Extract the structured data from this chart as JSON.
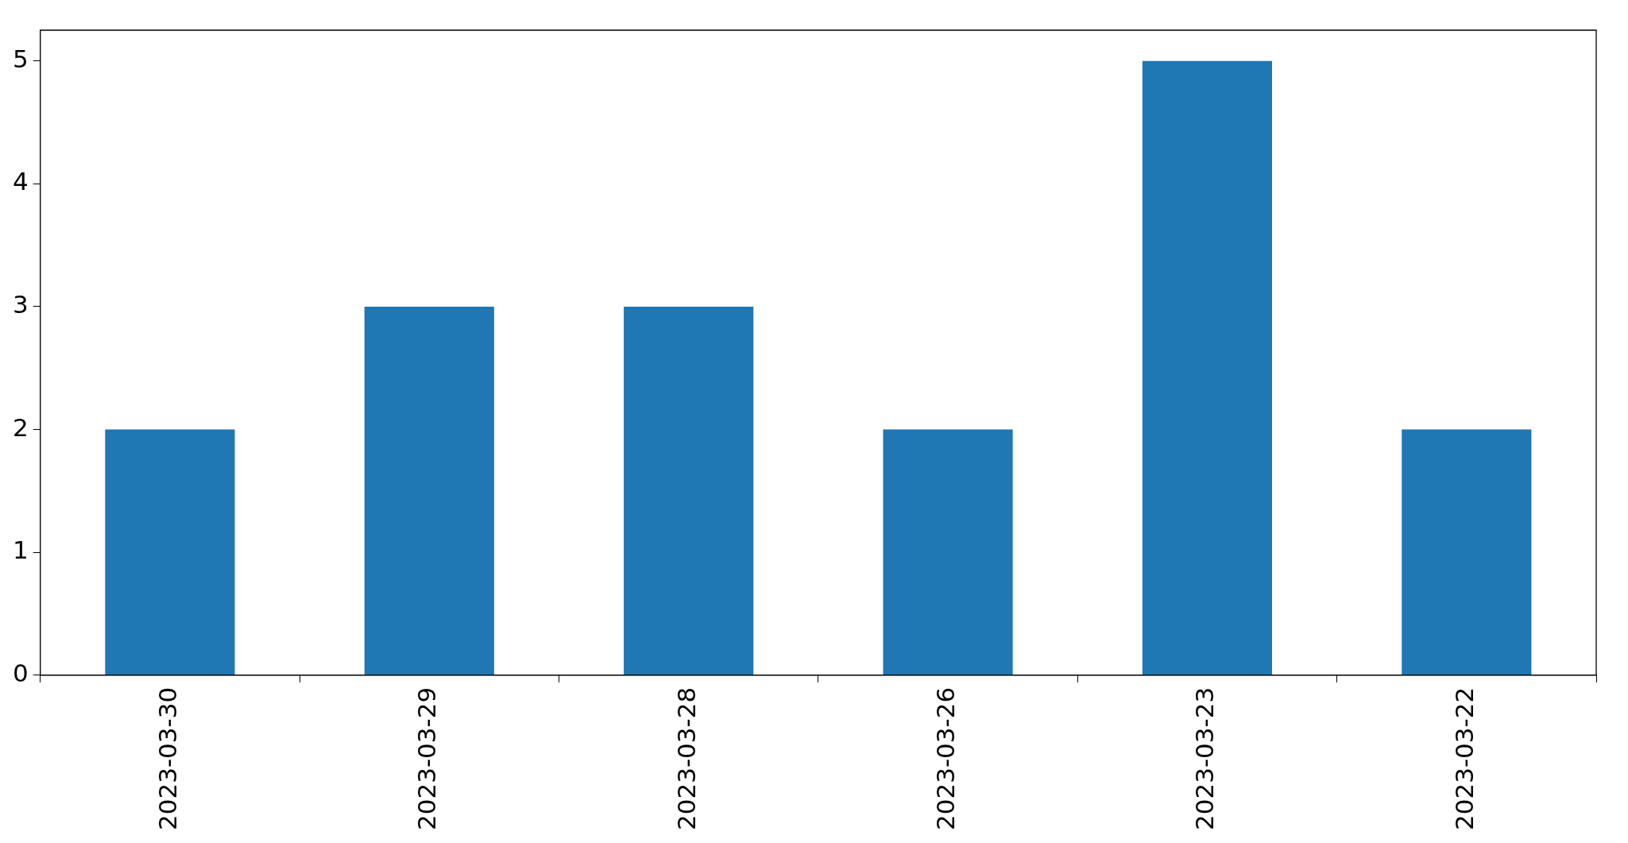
{
  "chart_data": {
    "type": "bar",
    "categories": [
      "2023-03-30",
      "2023-03-29",
      "2023-03-28",
      "2023-03-26",
      "2023-03-23",
      "2023-03-22"
    ],
    "values": [
      2,
      3,
      3,
      2,
      5,
      2
    ],
    "color": "#1f77b4",
    "ylim": [
      0,
      5.25
    ],
    "yticks": [
      0,
      1,
      2,
      3,
      4,
      5
    ],
    "grid": false,
    "legend": false
  }
}
